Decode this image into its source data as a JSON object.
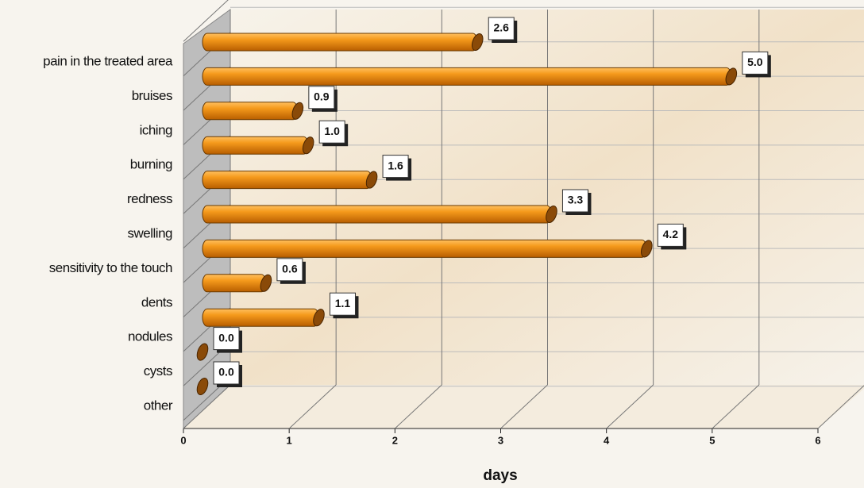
{
  "chart_data": {
    "type": "bar",
    "categories": [
      "pain in the treated area",
      "bruises",
      "iching",
      "burning",
      "redness",
      "swelling",
      "sensitivity to the touch",
      "dents",
      "nodules",
      "cysts",
      "other"
    ],
    "values": [
      2.6,
      5.0,
      0.9,
      1.0,
      1.6,
      3.3,
      4.2,
      0.6,
      1.1,
      0.0,
      0.0
    ],
    "value_labels": [
      "2.6",
      "5.0",
      "0.9",
      "1.0",
      "1.6",
      "3.3",
      "4.2",
      "0.6",
      "1.1",
      "0.0",
      "0.0"
    ],
    "color": "#f08c10",
    "x_label": "days",
    "xlim": [
      0,
      6
    ],
    "xticks": [
      0,
      1,
      2,
      3,
      4,
      5,
      6
    ],
    "grid": true
  }
}
